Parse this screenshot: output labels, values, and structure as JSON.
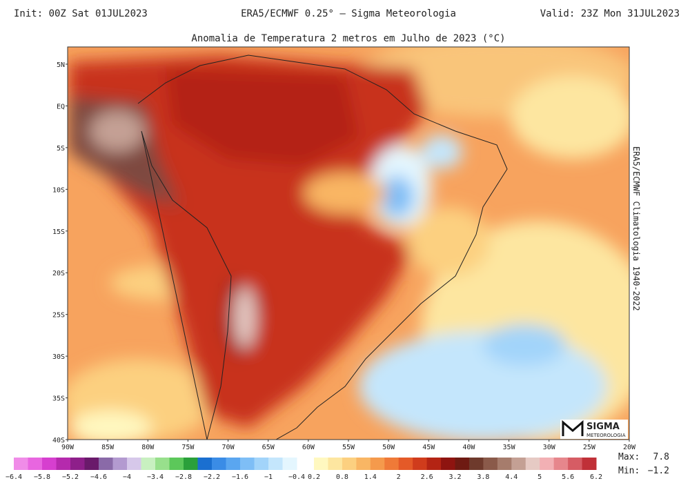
{
  "header": {
    "left": "Init: 00Z Sat 01JUL2023",
    "center": "ERA5/ECMWF 0.25° — Sigma Meteorologia",
    "right": "Valid: 23Z Mon 31JUL2023"
  },
  "title": "Anomalia de Temperatura 2 metros em Julho de 2023 (°C)",
  "side_label": "ERA5/ECMWF Climatologia 1940-2022",
  "lat_labels": [
    "5N",
    "EQ",
    "5S",
    "10S",
    "15S",
    "20S",
    "25S",
    "30S",
    "35S",
    "40S"
  ],
  "lon_labels": [
    "90W",
    "85W",
    "80W",
    "75W",
    "70W",
    "65W",
    "60W",
    "55W",
    "50W",
    "45W",
    "40W",
    "35W",
    "30W",
    "25W",
    "20W"
  ],
  "logo": {
    "name": "SIGMA",
    "sub": "METEOROLOGIA"
  },
  "colorbar": {
    "negative_labels": [
      "−6.4",
      "−5.8",
      "−5.2",
      "−4.6",
      "−4",
      "−3.4",
      "−2.8",
      "−2.2",
      "−1.6",
      "−1",
      "−0.4"
    ],
    "positive_labels": [
      "0.2",
      "0.8",
      "1.4",
      "2",
      "2.6",
      "3.2",
      "3.8",
      "4.4",
      "5",
      "5.6",
      "6.2"
    ],
    "negative_colors": [
      "#f08ce8",
      "#e866e0",
      "#d63fcf",
      "#b52aad",
      "#8e1f8a",
      "#6a1a6b",
      "#8a6aa8",
      "#b39ad0",
      "#d6c8ea",
      "#c8f0c0",
      "#98e08c",
      "#5cc85a",
      "#2aa03a",
      "#1a6fd0",
      "#3a8ce6",
      "#5aa6f0",
      "#7ebef6",
      "#a2d4fa",
      "#c4e6fc",
      "#e4f6fe"
    ],
    "positive_colors": [
      "#fff8c0",
      "#fde6a0",
      "#fcd080",
      "#f9b664",
      "#f59a4c",
      "#ef7a38",
      "#e45a28",
      "#d03c1c",
      "#b42414",
      "#8e1410",
      "#6e1a12",
      "#6e3a2c",
      "#8a5a4a",
      "#a67c6c",
      "#c4a094",
      "#e6cac4",
      "#f2b0b4",
      "#e6868c",
      "#d65c64",
      "#c03038"
    ]
  },
  "stats": {
    "max_label": "Max:",
    "max": "7.8",
    "min_label": "Min:",
    "min": "−1.2"
  }
}
